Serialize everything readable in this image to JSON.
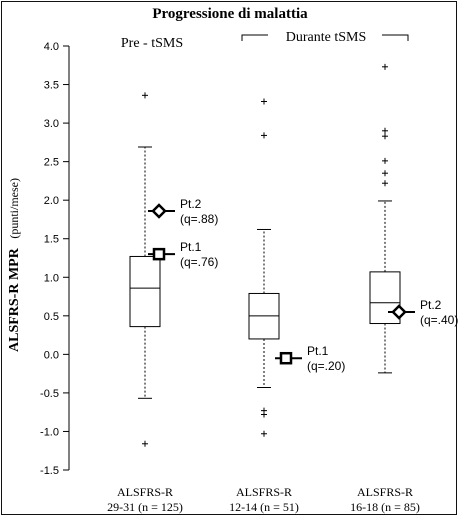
{
  "chart_data": {
    "type": "box",
    "title": "Progressione di malattia",
    "ylabel": "ALSFRS-R MPR",
    "ylabel_unit": "(punti/mese)",
    "ylim": [
      -1.5,
      4.0
    ],
    "yticks": [
      "-1.5",
      "-1.0",
      "-0.5",
      "0.0",
      "0.5",
      "1.0",
      "1.5",
      "2.0",
      "2.5",
      "3.0",
      "3.5",
      "4.0"
    ],
    "group_labels": {
      "pre": "Pre - tSMS",
      "during": "Durante tSMS"
    },
    "categories": [
      {
        "line1": "ALSFRS-R",
        "line2": "29-31 (n = 125)"
      },
      {
        "line1": "ALSFRS-R",
        "line2": "12-14 (n = 51)"
      },
      {
        "line1": "ALSFRS-R",
        "line2": "16-18 (n = 85)"
      }
    ],
    "boxes": [
      {
        "whisker_low": -0.57,
        "q1": 0.36,
        "median": 0.86,
        "q3": 1.27,
        "whisker_high": 2.69,
        "outliers": [
          3.36,
          -1.16
        ]
      },
      {
        "whisker_low": -0.43,
        "q1": 0.2,
        "median": 0.5,
        "q3": 0.79,
        "whisker_high": 1.62,
        "outliers": [
          3.28,
          2.84,
          -0.73,
          -0.78,
          -1.03
        ]
      },
      {
        "whisker_low": -0.24,
        "q1": 0.4,
        "median": 0.67,
        "q3": 1.07,
        "whisker_high": 1.99,
        "outliers": [
          3.73,
          2.9,
          2.83,
          2.51,
          2.35,
          2.22
        ]
      }
    ],
    "patients": [
      {
        "box": 0,
        "value": 1.86,
        "marker": "diamond",
        "label": "Pt.2",
        "q": "(q=.88)"
      },
      {
        "box": 0,
        "value": 1.3,
        "marker": "square",
        "label": "Pt.1",
        "q": "(q=.76)"
      },
      {
        "box": 1,
        "value": -0.05,
        "marker": "square",
        "label": "Pt.1",
        "q": "(q=.20)"
      },
      {
        "box": 2,
        "value": 0.55,
        "marker": "diamond",
        "label": "Pt.2",
        "q": "(q=.40)"
      }
    ]
  }
}
